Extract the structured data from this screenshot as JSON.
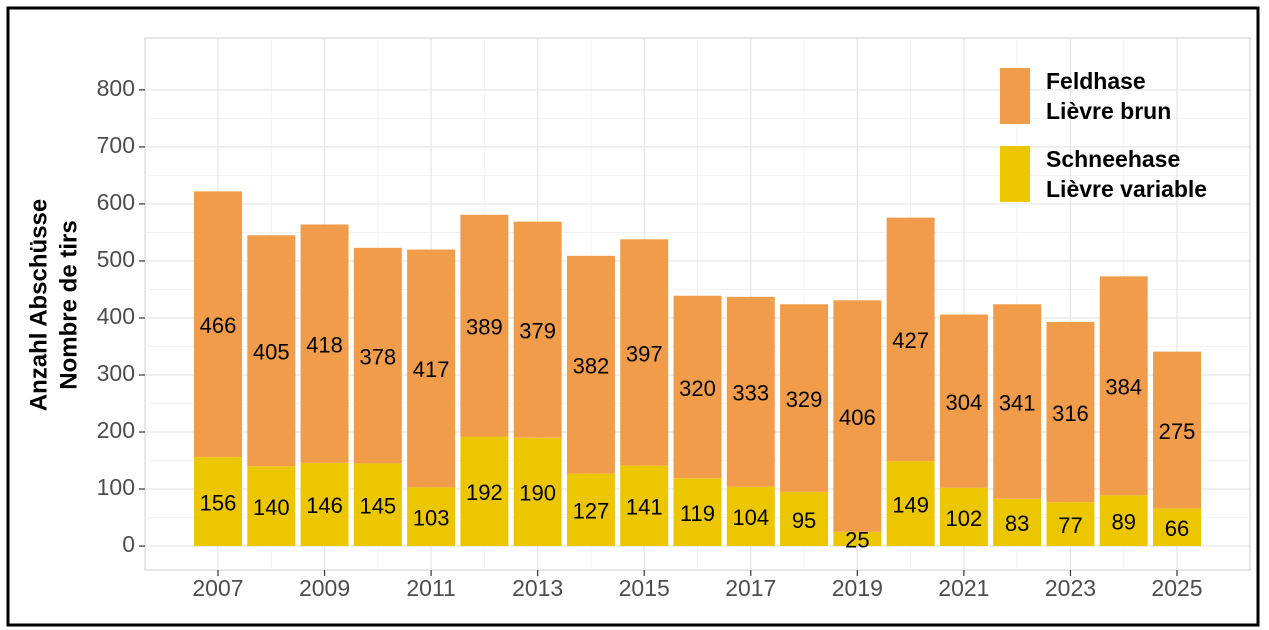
{
  "chart_data": {
    "type": "stacked_bar",
    "ylabel": [
      "Anzahl Abschüsse",
      "Nombre de tirs"
    ],
    "x": [
      2007,
      2008,
      2009,
      2010,
      2011,
      2012,
      2013,
      2014,
      2015,
      2016,
      2017,
      2018,
      2019,
      2020,
      2021,
      2022,
      2023,
      2024,
      2025
    ],
    "xlim": [
      2005.63,
      2026.37
    ],
    "xticks": [
      2007,
      2009,
      2011,
      2013,
      2015,
      2017,
      2019,
      2021,
      2023,
      2025
    ],
    "ylim": [
      -42,
      891
    ],
    "yticks": [
      0,
      100,
      200,
      300,
      400,
      500,
      600,
      700,
      800
    ],
    "grid": true,
    "legend": "top-right",
    "series": [
      {
        "name": "Schneehase\nLièvre variable",
        "color": "#ecc700",
        "values": [
          156,
          140,
          146,
          145,
          103,
          192,
          190,
          127,
          141,
          119,
          104,
          95,
          25,
          149,
          102,
          83,
          77,
          89,
          66
        ]
      },
      {
        "name": "Feldhase\nLièvre brun",
        "color": "#f09c4a",
        "values": [
          466,
          405,
          418,
          378,
          417,
          389,
          379,
          382,
          397,
          320,
          333,
          329,
          406,
          427,
          304,
          341,
          316,
          384,
          275
        ]
      }
    ]
  }
}
